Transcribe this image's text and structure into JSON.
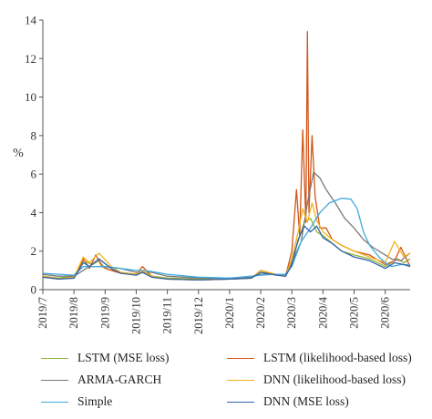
{
  "chart_data": {
    "type": "line",
    "title": "",
    "xlabel": "",
    "ylabel": "%",
    "ylim": [
      0,
      14
    ],
    "yticks": [
      0,
      2,
      4,
      6,
      8,
      10,
      12,
      14
    ],
    "xlim": [
      0,
      11.8
    ],
    "xticks": [
      "2019/7",
      "2019/8",
      "2019/9",
      "2019/10",
      "2019/11",
      "2019/12",
      "2020/1",
      "2020/2",
      "2020/3",
      "2020/4",
      "2020/5",
      "2020/6"
    ],
    "grid": false,
    "legend_position": "bottom",
    "series": [
      {
        "name": "LSTM (MSE loss)",
        "color": "#8db33a",
        "x": [
          0,
          0.5,
          1.0,
          1.3,
          1.6,
          1.8,
          2.0,
          2.5,
          3.0,
          3.2,
          3.5,
          4.0,
          5.0,
          6.0,
          6.7,
          7.0,
          7.5,
          7.8,
          8.0,
          8.2,
          8.4,
          8.6,
          8.8,
          9.0,
          9.3,
          9.6,
          10.0,
          10.5,
          11.0,
          11.4,
          11.6,
          11.8
        ],
        "y": [
          0.7,
          0.6,
          0.7,
          1.5,
          1.3,
          1.5,
          1.1,
          0.9,
          0.8,
          1.0,
          0.7,
          0.6,
          0.55,
          0.6,
          0.6,
          0.9,
          0.8,
          0.8,
          1.5,
          2.5,
          3.5,
          3.7,
          3.0,
          2.8,
          2.4,
          2.0,
          1.8,
          1.6,
          1.2,
          1.6,
          1.4,
          1.6
        ]
      },
      {
        "name": "LSTM (likelihood-based loss)",
        "color": "#d2561a",
        "x": [
          0,
          0.5,
          1.0,
          1.3,
          1.5,
          1.7,
          1.9,
          2.2,
          2.5,
          3.0,
          3.2,
          3.5,
          4.0,
          5.0,
          6.0,
          6.7,
          7.0,
          7.4,
          7.8,
          8.0,
          8.15,
          8.25,
          8.35,
          8.45,
          8.5,
          8.55,
          8.65,
          8.75,
          8.9,
          9.1,
          9.3,
          9.6,
          10.0,
          10.5,
          11.0,
          11.3,
          11.5,
          11.8
        ],
        "y": [
          0.7,
          0.55,
          0.6,
          1.6,
          1.1,
          1.8,
          1.2,
          1.0,
          0.85,
          0.8,
          1.2,
          0.7,
          0.55,
          0.5,
          0.55,
          0.6,
          1.0,
          0.8,
          0.7,
          2.0,
          5.2,
          2.8,
          8.3,
          3.5,
          13.4,
          4.0,
          8.0,
          4.8,
          3.2,
          3.2,
          2.6,
          2.3,
          2.0,
          1.8,
          1.3,
          1.5,
          2.2,
          1.2
        ]
      },
      {
        "name": "ARMA-GARCH",
        "color": "#7a7a7a",
        "x": [
          0,
          0.5,
          1.0,
          1.5,
          2.0,
          2.5,
          3.0,
          3.5,
          4.0,
          5.0,
          6.0,
          6.7,
          7.0,
          7.5,
          7.8,
          8.0,
          8.3,
          8.5,
          8.7,
          8.9,
          9.1,
          9.4,
          9.7,
          10.0,
          10.3,
          10.6,
          10.9,
          11.2,
          11.5,
          11.8
        ],
        "y": [
          0.8,
          0.7,
          0.7,
          1.2,
          1.2,
          1.1,
          0.9,
          0.9,
          0.7,
          0.6,
          0.6,
          0.65,
          0.8,
          0.8,
          0.8,
          1.4,
          2.5,
          4.5,
          6.1,
          5.8,
          5.2,
          4.5,
          3.7,
          3.2,
          2.6,
          2.2,
          1.9,
          1.6,
          1.5,
          1.9
        ]
      },
      {
        "name": "DNN (likelihood-based loss)",
        "color": "#f2b21b",
        "x": [
          0,
          0.5,
          1.0,
          1.3,
          1.5,
          1.8,
          2.2,
          2.5,
          3.0,
          3.2,
          3.5,
          4.0,
          5.0,
          6.0,
          6.7,
          7.0,
          7.5,
          7.8,
          8.0,
          8.2,
          8.35,
          8.5,
          8.65,
          8.8,
          9.0,
          9.3,
          9.6,
          10.0,
          10.5,
          11.0,
          11.3,
          11.6,
          11.8
        ],
        "y": [
          0.7,
          0.55,
          0.65,
          1.7,
          1.4,
          1.9,
          1.2,
          0.9,
          0.8,
          1.0,
          0.7,
          0.55,
          0.5,
          0.55,
          0.6,
          1.0,
          0.8,
          0.7,
          1.6,
          3.0,
          4.2,
          3.5,
          4.5,
          3.6,
          3.0,
          2.6,
          2.3,
          2.0,
          1.7,
          1.4,
          2.5,
          1.7,
          1.9
        ]
      },
      {
        "name": "Simple",
        "color": "#3fa9e0",
        "x": [
          0,
          1.0,
          1.3,
          2.0,
          3.0,
          3.3,
          4.0,
          5.0,
          6.0,
          6.7,
          7.0,
          7.5,
          7.8,
          8.0,
          8.3,
          8.6,
          8.9,
          9.2,
          9.6,
          9.9,
          10.1,
          10.3,
          10.5,
          10.8,
          11.0,
          11.2,
          11.5,
          11.8
        ],
        "y": [
          0.85,
          0.75,
          1.2,
          1.2,
          1.0,
          1.0,
          0.8,
          0.65,
          0.6,
          0.7,
          0.75,
          0.8,
          0.8,
          1.2,
          2.5,
          3.2,
          4.0,
          4.5,
          4.75,
          4.7,
          4.2,
          3.0,
          2.3,
          1.7,
          1.4,
          1.2,
          1.3,
          1.3
        ]
      },
      {
        "name": "DNN (MSE loss)",
        "color": "#2f63a8",
        "x": [
          0,
          0.5,
          1.0,
          1.3,
          1.5,
          1.8,
          2.2,
          2.5,
          3.0,
          3.2,
          3.5,
          4.0,
          5.0,
          6.0,
          6.7,
          7.0,
          7.5,
          7.8,
          8.0,
          8.2,
          8.4,
          8.6,
          8.8,
          9.0,
          9.3,
          9.6,
          10.0,
          10.5,
          11.0,
          11.3,
          11.6,
          11.8
        ],
        "y": [
          0.65,
          0.55,
          0.6,
          1.4,
          1.2,
          1.6,
          1.1,
          0.85,
          0.75,
          0.9,
          0.65,
          0.55,
          0.5,
          0.55,
          0.6,
          0.9,
          0.75,
          0.7,
          1.3,
          2.6,
          3.3,
          3.0,
          3.3,
          2.7,
          2.4,
          2.0,
          1.7,
          1.5,
          1.1,
          1.4,
          1.3,
          1.2
        ]
      }
    ]
  },
  "legend": {
    "items": [
      {
        "label": "LSTM (MSE loss)",
        "color": "#8db33a"
      },
      {
        "label": "LSTM (likelihood-based loss)",
        "color": "#d2561a"
      },
      {
        "label": "ARMA-GARCH",
        "color": "#7a7a7a"
      },
      {
        "label": "DNN (likelihood-based loss)",
        "color": "#f2b21b"
      },
      {
        "label": "Simple",
        "color": "#3fa9e0"
      },
      {
        "label": "DNN (MSE loss)",
        "color": "#2f63a8"
      }
    ]
  }
}
